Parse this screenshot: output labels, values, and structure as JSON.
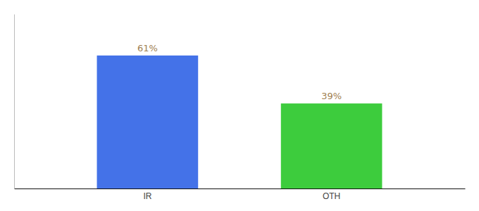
{
  "chart_data": {
    "type": "bar",
    "categories": [
      "IR",
      "OTH"
    ],
    "values": [
      61,
      39
    ],
    "value_labels": [
      "61%",
      "39%"
    ],
    "colors": [
      "#4472e8",
      "#3dcc3d"
    ],
    "ylim": [
      0,
      80
    ],
    "data_labels": true,
    "tick_labels": "x",
    "grid": false
  }
}
